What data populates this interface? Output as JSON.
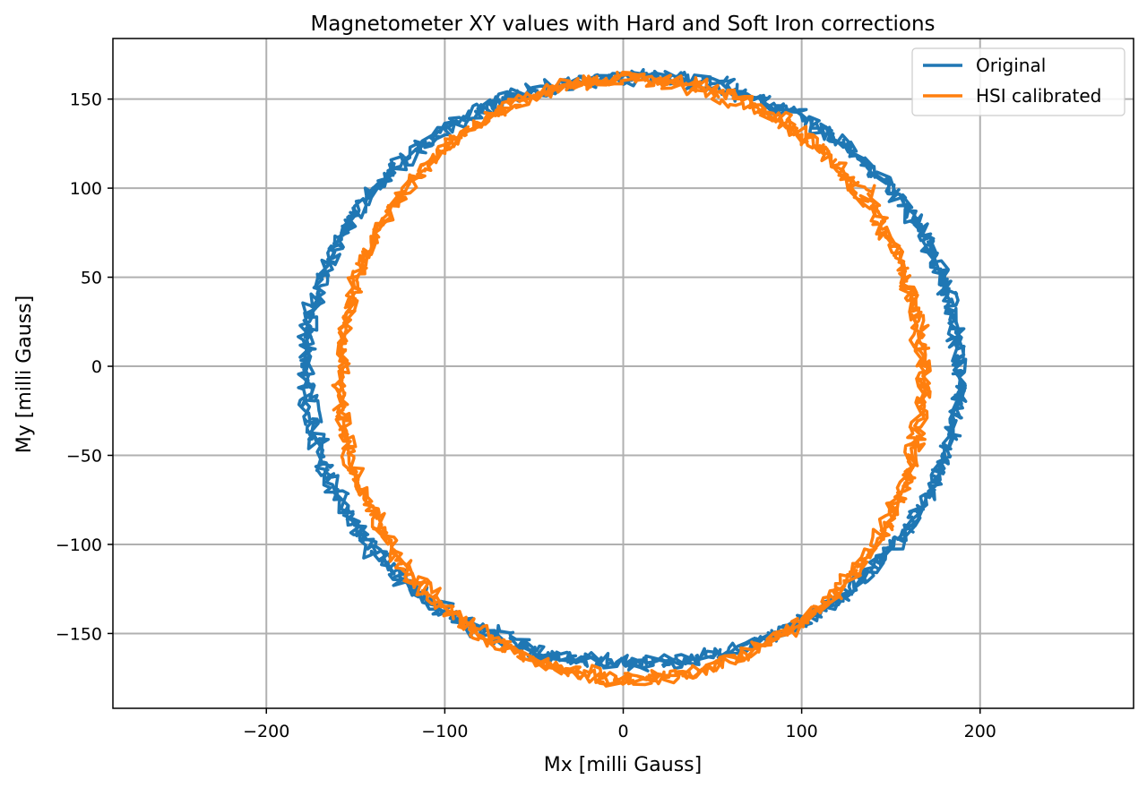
{
  "chart_data": {
    "type": "line",
    "title": "Magnetometer XY values with Hard and Soft Iron corrections",
    "xlabel": "Mx [milli Gauss]",
    "ylabel": "My [milli Gauss]",
    "xlim": [
      -286,
      286
    ],
    "ylim": [
      -192,
      184
    ],
    "xticks": [
      -200,
      -100,
      0,
      100,
      200
    ],
    "xtick_labels": [
      "−200",
      "−100",
      "0",
      "100",
      "200"
    ],
    "yticks": [
      -150,
      -100,
      -50,
      0,
      50,
      100,
      150
    ],
    "ytick_labels": [
      "−150",
      "−100",
      "−50",
      "0",
      "50",
      "100",
      "150"
    ],
    "grid": true,
    "legend_position": "top-right",
    "series": [
      {
        "name": "Original",
        "color": "#1f77b4",
        "shape": "noisy closed loop",
        "center": [
          5,
          -2
        ],
        "radius_x": 181,
        "radius_y": 163,
        "noise": 7,
        "laps": 3
      },
      {
        "name": "HSI calibrated",
        "color": "#ff7f0e",
        "shape": "noisy closed loop",
        "center": [
          5,
          -7
        ],
        "radius_x": 161,
        "radius_y": 166,
        "noise": 6,
        "laps": 3
      }
    ]
  }
}
